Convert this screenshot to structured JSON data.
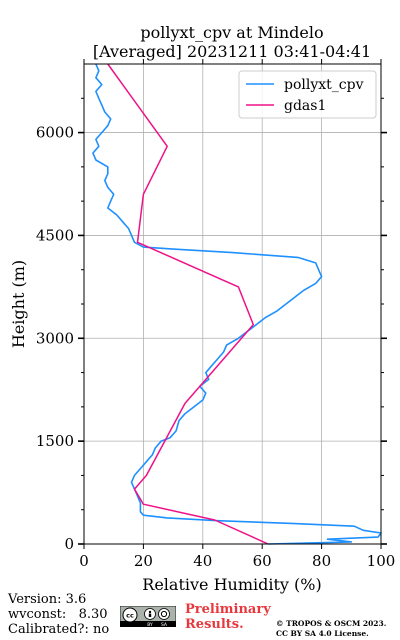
{
  "chart_data": {
    "type": "line",
    "title_line1": "pollyxt_cpv at Mindelo",
    "title_line2": "[Averaged] 20231211 03:41-04:41",
    "xlabel": "Relative Humidity (%)",
    "ylabel": "Height (m)",
    "xlim": [
      0,
      100
    ],
    "ylim": [
      0,
      7000
    ],
    "xticks": [
      "0",
      "20",
      "40",
      "60",
      "80",
      "100"
    ],
    "yticks": [
      "0",
      "1500",
      "3000",
      "4500",
      "6000"
    ],
    "grid": true,
    "legend_position": "upper right",
    "colors": {
      "pollyxt_cpv": "#1e90ff",
      "gdas1": "#ee1188"
    },
    "series": [
      {
        "name": "pollyxt_cpv",
        "points": [
          [
            62,
            0
          ],
          [
            90,
            30
          ],
          [
            82,
            70
          ],
          [
            99,
            100
          ],
          [
            100,
            160
          ],
          [
            94,
            200
          ],
          [
            91,
            260
          ],
          [
            70,
            300
          ],
          [
            45,
            340
          ],
          [
            28,
            380
          ],
          [
            20,
            420
          ],
          [
            19,
            470
          ],
          [
            19,
            520
          ],
          [
            19,
            600
          ],
          [
            18,
            700
          ],
          [
            17,
            800
          ],
          [
            16,
            900
          ],
          [
            17,
            1000
          ],
          [
            19,
            1100
          ],
          [
            21,
            1200
          ],
          [
            23,
            1300
          ],
          [
            24,
            1400
          ],
          [
            26,
            1500
          ],
          [
            29,
            1550
          ],
          [
            31,
            1650
          ],
          [
            32,
            1800
          ],
          [
            34,
            1900
          ],
          [
            37,
            2000
          ],
          [
            40,
            2100
          ],
          [
            41,
            2200
          ],
          [
            39,
            2300
          ],
          [
            42,
            2400
          ],
          [
            41,
            2500
          ],
          [
            43,
            2600
          ],
          [
            45,
            2700
          ],
          [
            47,
            2800
          ],
          [
            48,
            2900
          ],
          [
            52,
            3000
          ],
          [
            55,
            3100
          ],
          [
            58,
            3200
          ],
          [
            61,
            3300
          ],
          [
            65,
            3400
          ],
          [
            68,
            3500
          ],
          [
            71,
            3600
          ],
          [
            74,
            3700
          ],
          [
            78,
            3800
          ],
          [
            80,
            3900
          ],
          [
            79,
            4000
          ],
          [
            78,
            4100
          ],
          [
            72,
            4180
          ],
          [
            50,
            4250
          ],
          [
            30,
            4300
          ],
          [
            20,
            4330
          ],
          [
            17,
            4400
          ],
          [
            16,
            4500
          ],
          [
            15,
            4600
          ],
          [
            13,
            4700
          ],
          [
            11,
            4800
          ],
          [
            8,
            4900
          ],
          [
            9,
            5000
          ],
          [
            10,
            5100
          ],
          [
            8,
            5200
          ],
          [
            7,
            5300
          ],
          [
            8,
            5400
          ],
          [
            8,
            5500
          ],
          [
            4,
            5600
          ],
          [
            3,
            5700
          ],
          [
            5,
            5800
          ],
          [
            4,
            5900
          ],
          [
            6,
            6000
          ],
          [
            8,
            6100
          ],
          [
            9,
            6200
          ],
          [
            7,
            6300
          ],
          [
            6,
            6400
          ],
          [
            5,
            6500
          ],
          [
            4,
            6600
          ],
          [
            6,
            6700
          ],
          [
            4,
            6800
          ],
          [
            5,
            6900
          ],
          [
            4,
            7000
          ]
        ]
      },
      {
        "name": "gdas1",
        "points": [
          [
            62,
            0
          ],
          [
            44,
            350
          ],
          [
            20,
            580
          ],
          [
            17,
            800
          ],
          [
            21,
            1000
          ],
          [
            34,
            2050
          ],
          [
            47,
            2700
          ],
          [
            57,
            3200
          ],
          [
            52,
            3750
          ],
          [
            18,
            4400
          ],
          [
            20,
            5100
          ],
          [
            28,
            5800
          ],
          [
            8,
            7000
          ]
        ]
      }
    ]
  },
  "footer": {
    "version": "Version: 3.6",
    "wvconst": "wvconst:   8.30",
    "calibrated": "Calibrated?: no",
    "preliminary_line1": "Preliminary",
    "preliminary_line2": "Results.",
    "copyright_line1": "© TROPOS & OSCM 2023.",
    "copyright_line2": "CC BY SA 4.0 License.",
    "license_badge_text": "cc BY SA"
  }
}
